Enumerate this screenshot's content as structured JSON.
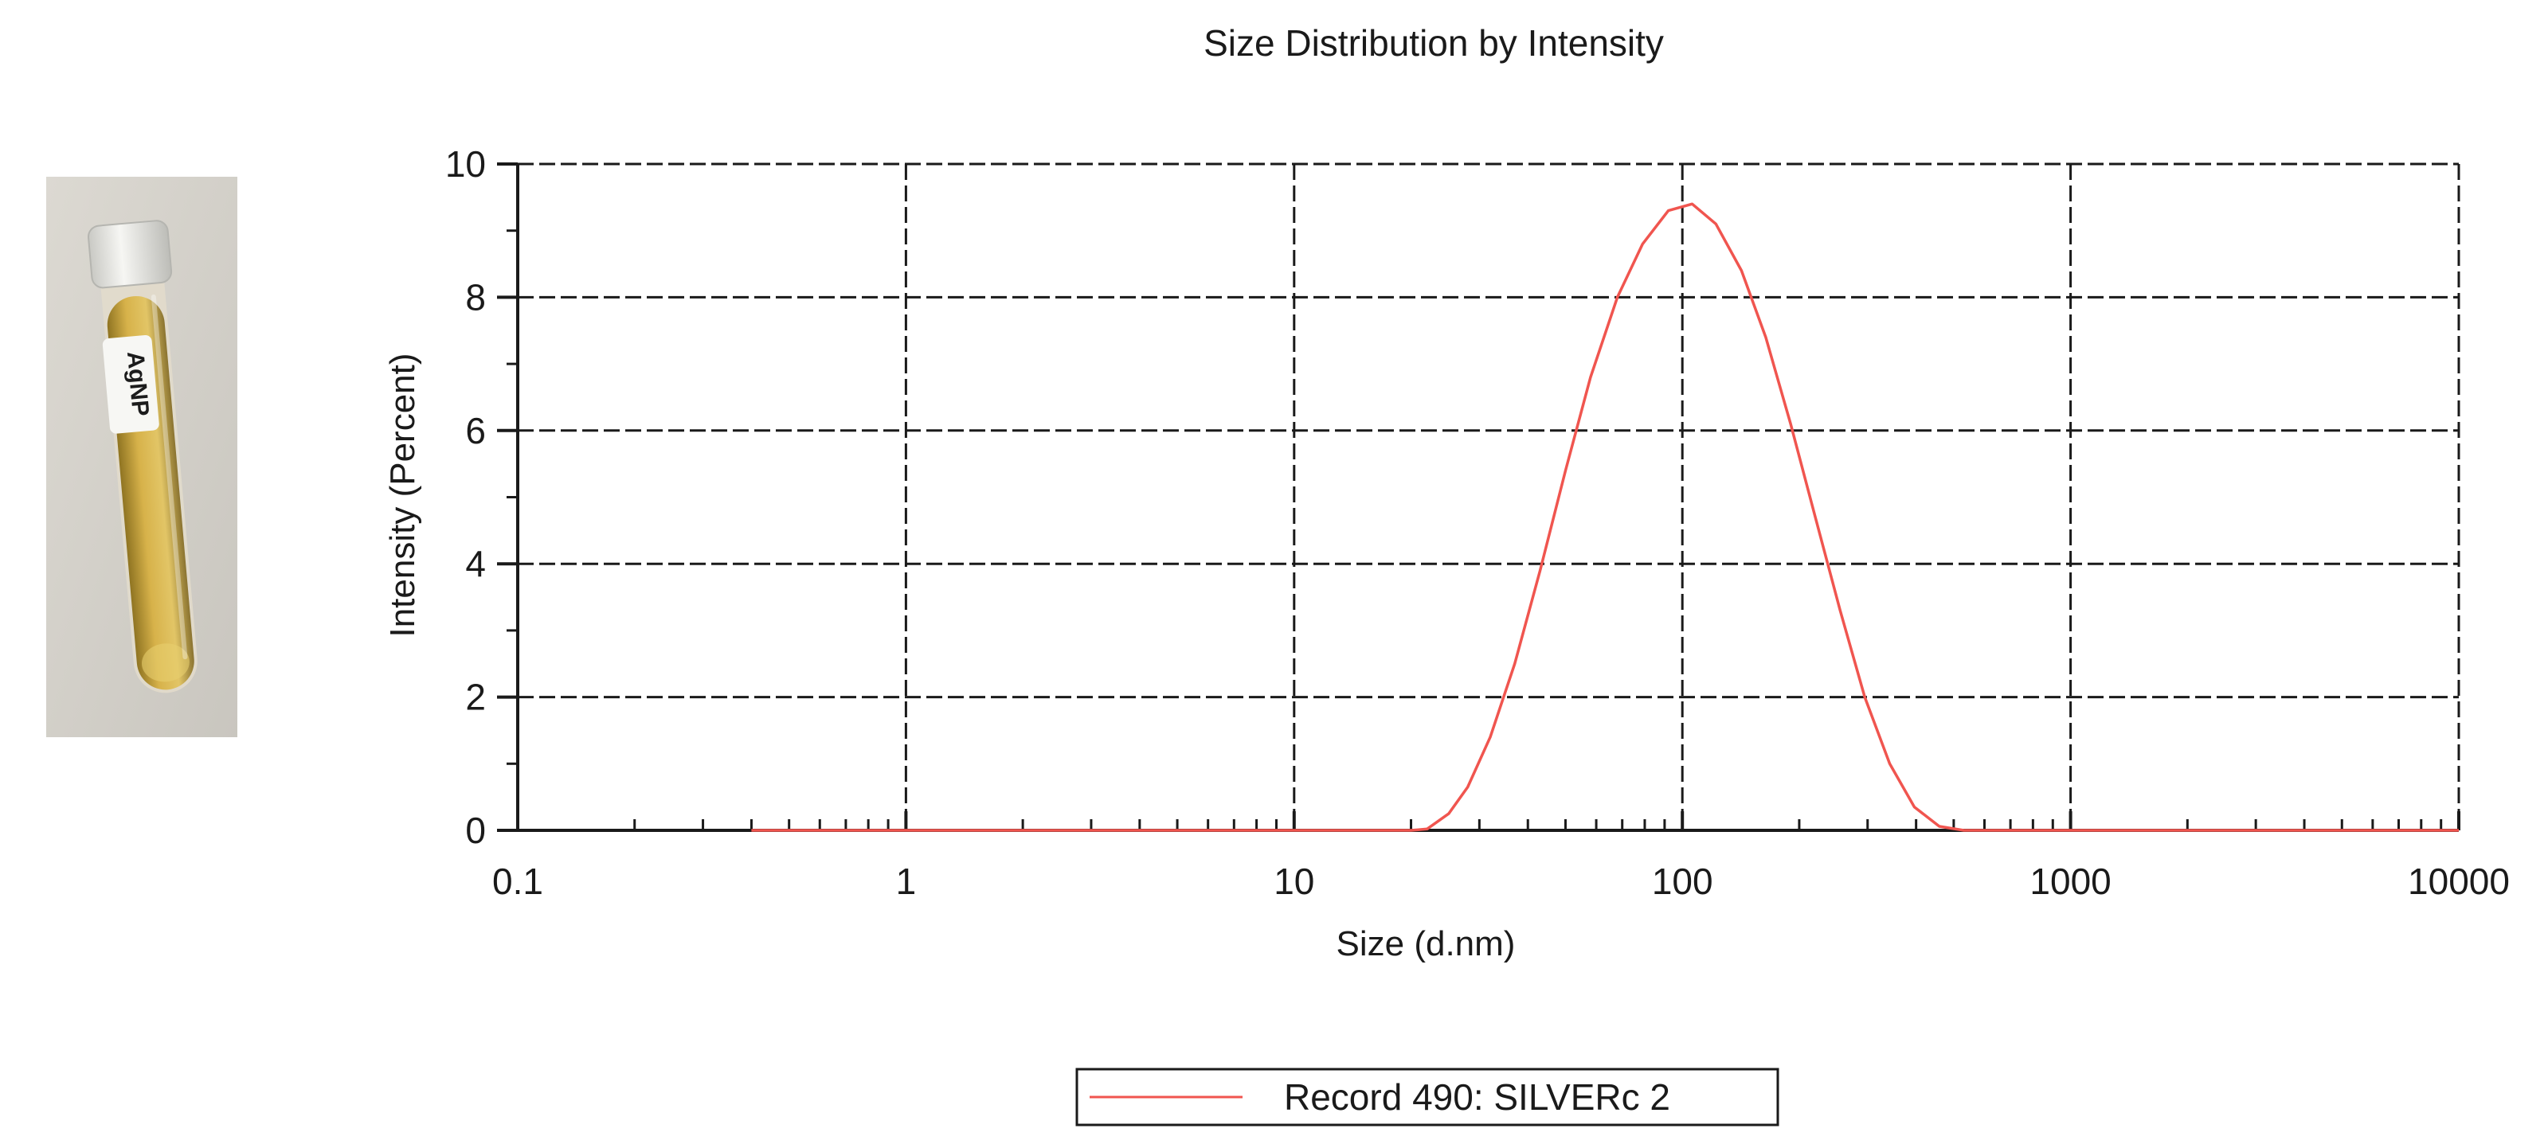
{
  "photo": {
    "tube_label": "AgNP",
    "colors": {
      "background": "#d5d2cb",
      "liquid": "#c9a43a",
      "cap": "#eeeeea"
    }
  },
  "chart_data": {
    "type": "line",
    "title": "Size Distribution by Intensity",
    "xlabel": "Size (d.nm)",
    "ylabel": "Intensity (Percent)",
    "xscale": "log",
    "xlim": [
      0.1,
      10000
    ],
    "ylim": [
      0,
      10
    ],
    "xticks": [
      0.1,
      1,
      10,
      100,
      1000,
      10000
    ],
    "xtick_labels": [
      "0.1",
      "1",
      "10",
      "100",
      "1000",
      "10000"
    ],
    "yticks": [
      0,
      2,
      4,
      6,
      8,
      10
    ],
    "ytick_labels": [
      "0",
      "2",
      "4",
      "6",
      "8",
      "10"
    ],
    "grid": true,
    "legend_position": "bottom-center",
    "series": [
      {
        "name": "Record 490: SILVERc 2",
        "color": "#f0554f",
        "x": [
          0.4,
          1,
          5,
          10,
          15,
          20,
          22,
          25,
          28,
          32,
          37,
          43,
          50,
          58,
          68,
          79,
          92,
          106,
          122,
          142,
          164,
          190,
          220,
          255,
          295,
          342,
          396,
          459,
          531,
          615,
          1000,
          5000,
          10000
        ],
        "y": [
          0,
          0,
          0,
          0,
          0,
          0,
          0.02,
          0.25,
          0.65,
          1.4,
          2.5,
          3.9,
          5.4,
          6.8,
          8.0,
          8.8,
          9.3,
          9.4,
          9.1,
          8.4,
          7.4,
          6.1,
          4.7,
          3.3,
          2.0,
          1.0,
          0.35,
          0.06,
          0,
          0,
          0,
          0,
          0
        ]
      }
    ]
  }
}
